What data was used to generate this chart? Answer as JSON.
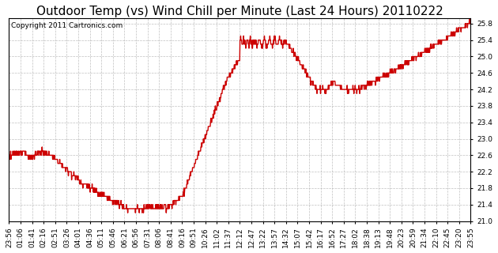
{
  "title": "Outdoor Temp (vs) Wind Chill per Minute (Last 24 Hours) 20110222",
  "copyright": "Copyright 2011 Cartronics.com",
  "line_color": "#cc0000",
  "bg_color": "#ffffff",
  "grid_color": "#b0b0b0",
  "ylim": [
    21.0,
    25.93
  ],
  "yticks": [
    21.0,
    21.4,
    21.8,
    22.2,
    22.6,
    23.0,
    23.4,
    23.8,
    24.2,
    24.6,
    25.0,
    25.4,
    25.8
  ],
  "xtick_labels": [
    "23:56",
    "01:06",
    "01:41",
    "02:16",
    "02:51",
    "03:26",
    "04:01",
    "04:36",
    "05:11",
    "05:46",
    "06:21",
    "06:56",
    "07:31",
    "08:06",
    "08:41",
    "09:16",
    "09:51",
    "10:26",
    "11:02",
    "11:37",
    "12:12",
    "12:47",
    "13:22",
    "13:57",
    "14:32",
    "15:07",
    "15:42",
    "16:17",
    "16:52",
    "17:27",
    "18:02",
    "18:38",
    "19:13",
    "19:48",
    "20:23",
    "20:59",
    "21:34",
    "22:10",
    "22:45",
    "23:20",
    "23:55"
  ],
  "title_fontsize": 11,
  "copyright_fontsize": 6.5,
  "tick_fontsize": 6.5,
  "line_width": 1.0
}
